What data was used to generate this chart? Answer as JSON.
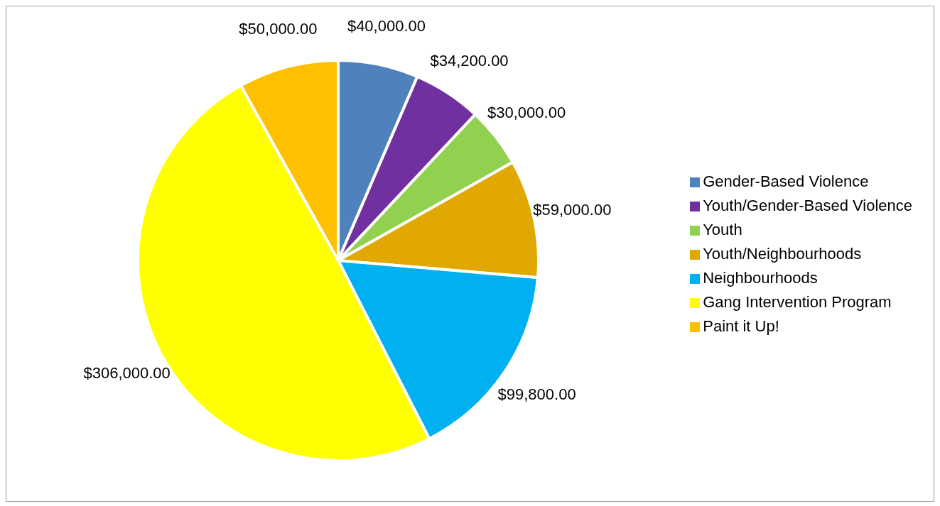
{
  "chart_data": {
    "type": "pie",
    "categories": [
      "Gender-Based Violence",
      "Youth/Gender-Based Violence",
      "Youth",
      "Youth/Neighbourhoods",
      "Neighbourhoods",
      "Gang Intervention Program",
      "Paint it Up!"
    ],
    "values": [
      40000,
      34200,
      30000,
      59000,
      99800,
      306000,
      50000
    ],
    "colors": [
      "#4f81bd",
      "#7030a0",
      "#92d050",
      "#e0a800",
      "#00b0f0",
      "#ffff00",
      "#ffc000"
    ],
    "value_labels": [
      "$40,000.00",
      "$34,200.00",
      "$30,000.00",
      "$59,000.00",
      "$99,800.00",
      "$306,000.00",
      "$50,000.00"
    ],
    "legend": "right"
  }
}
